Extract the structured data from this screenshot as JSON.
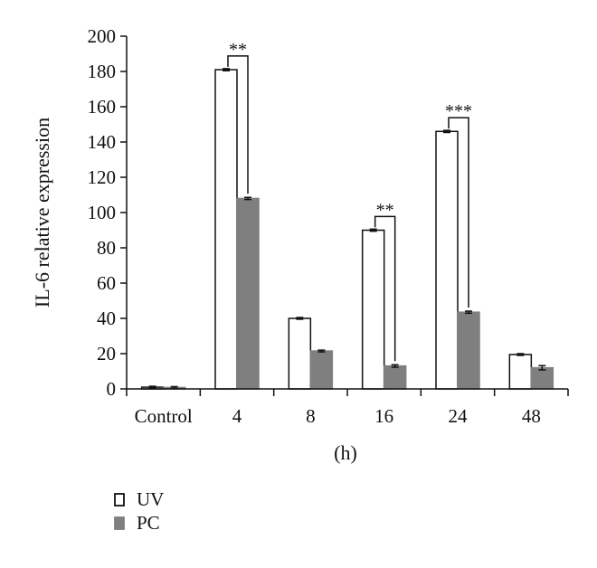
{
  "chart_data": {
    "type": "bar",
    "ylabel": "IL-6 relative expression",
    "xlabel": "(h)",
    "ylim": [
      0,
      200
    ],
    "yticks": [
      0,
      20,
      40,
      60,
      80,
      100,
      120,
      140,
      160,
      180,
      200
    ],
    "categories": [
      "Control",
      "4",
      "8",
      "16",
      "24",
      "48"
    ],
    "series": [
      {
        "name": "UV",
        "color": "#ffffff",
        "stroke": "#111111",
        "values": [
          1,
          181,
          40,
          90,
          146,
          19.5
        ],
        "errors": [
          0.5,
          0.6,
          0.5,
          0.6,
          0.6,
          0.5
        ]
      },
      {
        "name": "PC",
        "color": "#7f7f7f",
        "stroke": "#7f7f7f",
        "values": [
          0.8,
          108,
          21.5,
          13,
          43.5,
          12
        ],
        "errors": [
          0.5,
          0.6,
          0.5,
          0.7,
          0.6,
          1.2
        ]
      }
    ],
    "annotations": [
      {
        "category": "4",
        "label": "**"
      },
      {
        "category": "16",
        "label": "**"
      },
      {
        "category": "24",
        "label": "***"
      }
    ],
    "grid": false,
    "legend": "bottom-left"
  }
}
